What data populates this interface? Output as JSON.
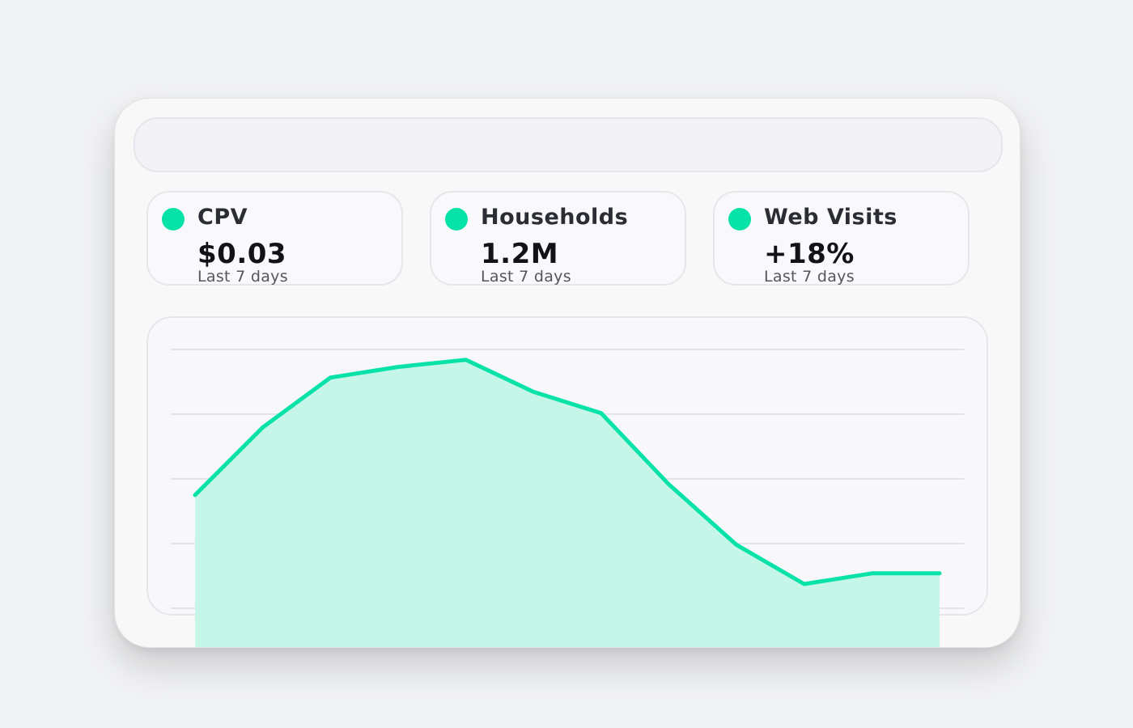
{
  "colors": {
    "accent": "#07e2a8",
    "area_fill": "#c2f5e6",
    "gridline": "#e3e3ec"
  },
  "metrics": [
    {
      "label": "CPV",
      "value": "$0.03",
      "period": "Last 7 days"
    },
    {
      "label": "Households",
      "value": "1.2M",
      "period": "Last 7 days"
    },
    {
      "label": "Web Visits",
      "value": "+18%",
      "period": "Last 7 days"
    }
  ],
  "chart_data": {
    "type": "area",
    "title": "",
    "xlabel": "",
    "ylabel": "",
    "grid": true,
    "ylim": [
      0,
      100
    ],
    "x": [
      1,
      2,
      3,
      4,
      5,
      6,
      7,
      8,
      9,
      10,
      11,
      12
    ],
    "series": [
      {
        "values": [
          50,
          69,
          83,
          86,
          88,
          79,
          73,
          53,
          36,
          25,
          28,
          28
        ]
      }
    ]
  }
}
